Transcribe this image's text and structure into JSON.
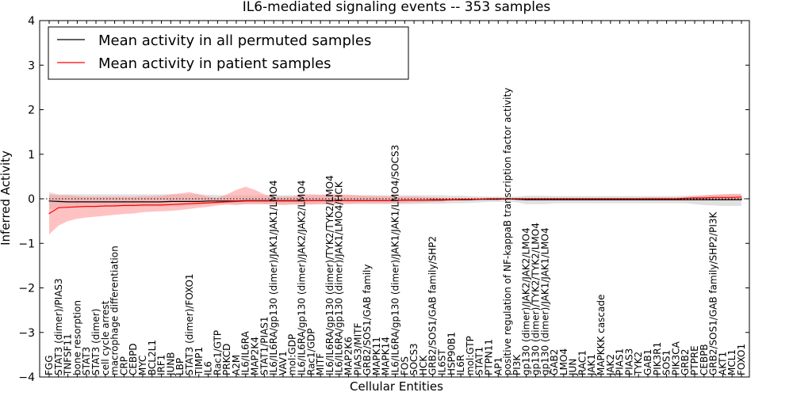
{
  "chart_data": {
    "type": "line",
    "title": "IL6-mediated signaling events -- 353 samples",
    "xlabel": "Cellular Entities",
    "ylabel": "Inferred Activity",
    "ylim": [
      -4,
      4
    ],
    "yticks": [
      -4,
      -3,
      -2,
      -1,
      0,
      1,
      2,
      3,
      4
    ],
    "legend_position": "top-left",
    "categories": [
      "FGG",
      "STAT3 (dimer)/PIAS3",
      "TNFSF11",
      "bone resorption",
      "STAT3",
      "STAT3 (dimer)",
      "cell cycle arrest",
      "macrophage differentiation",
      "CRP",
      "CEBPD",
      "MYC",
      "BCL2L1",
      "IRF1",
      "JUNB",
      "LBP",
      "STAT3 (dimer)/FOXO1",
      "TIMP1",
      "IL6",
      "Rac1/GTP",
      "PRKCD",
      "A2M",
      "IL6/IL6RA",
      "MAP2K4",
      "STAT1/PIAS1",
      "IL6/IL6RA/gp130 (dimer)/JAK1/JAK1/LMO4",
      "VAV1",
      "mol:GDP",
      "IL6/IL6RA/gp130 (dimer)/JAK2/JAK2/LMO4",
      "Rac1/GDP",
      "MITF",
      "IL6/IL6RA/gp130 (dimer)/TYK2/TYK2/LMO4",
      "IL6/IL6RA/gp130 (dimer)/JAK1/LMO4/HCK",
      "MAP2K6",
      "PIAS3/MITF",
      "GRB2/SOS1/GAB family",
      "MAPK11",
      "MAPK14",
      "IL6/IL6RA/gp130 (dimer)/JAK1/JAK1/LMO4/SOCS3",
      "FOS",
      "SOCS3",
      "HCK",
      "GRB2/SOS1/GAB family/SHP2",
      "IL6ST",
      "HSP90B1",
      "IL6R",
      "mol:GTP",
      "STAT1",
      "PTPN11",
      "AP1",
      "positive regulation of NF-kappaB transcription factor activity",
      "PI3K",
      "gp130 (dimer)/JAK2/JAK2/LMO4",
      "gp130 (dimer)/TYK2/TYK2/LMO4",
      "gp130 (dimer)/JAK1/JAK1/LMO4",
      "GAB2",
      "LMO4",
      "JUN",
      "RAC1",
      "JAK1",
      "MAPKKK cascade",
      "JAK2",
      "PIAS1",
      "PIAS3",
      "TYK2",
      "GAB1",
      "PIK3R1",
      "SOS1",
      "PIK3CA",
      "GRB2",
      "PTPRE",
      "CEBPB",
      "GRB2/SOS1/GAB family/SHP2/PI3K",
      "AKT1",
      "MCL1",
      "FOXO1"
    ],
    "series": [
      {
        "name": "Mean activity in all permuted samples",
        "color": "#000000",
        "band_color": "#bbbbbb",
        "values": [
          -0.05,
          -0.06,
          -0.07,
          -0.07,
          -0.07,
          -0.07,
          -0.07,
          -0.07,
          -0.07,
          -0.07,
          -0.07,
          -0.07,
          -0.07,
          -0.06,
          -0.06,
          -0.06,
          -0.06,
          -0.05,
          -0.05,
          -0.05,
          -0.05,
          -0.04,
          -0.04,
          -0.04,
          -0.04,
          -0.04,
          -0.04,
          -0.04,
          -0.04,
          -0.04,
          -0.04,
          -0.04,
          -0.04,
          -0.04,
          -0.04,
          -0.04,
          -0.04,
          -0.04,
          -0.03,
          -0.03,
          -0.03,
          -0.03,
          -0.03,
          -0.02,
          -0.02,
          -0.02,
          -0.01,
          -0.01,
          -0.01,
          0.0,
          -0.01,
          -0.02,
          -0.02,
          -0.02,
          -0.02,
          -0.02,
          -0.02,
          -0.02,
          -0.02,
          -0.02,
          -0.02,
          -0.02,
          -0.02,
          -0.02,
          -0.02,
          -0.02,
          -0.02,
          -0.02,
          -0.02,
          -0.02,
          -0.02,
          -0.02,
          -0.02,
          -0.02,
          -0.02
        ],
        "lower": [
          -0.25,
          -0.2,
          -0.2,
          -0.18,
          -0.18,
          -0.18,
          -0.18,
          -0.18,
          -0.18,
          -0.18,
          -0.18,
          -0.17,
          -0.17,
          -0.17,
          -0.17,
          -0.16,
          -0.15,
          -0.12,
          -0.12,
          -0.12,
          -0.12,
          -0.12,
          -0.12,
          -0.12,
          -0.12,
          -0.12,
          -0.12,
          -0.12,
          -0.12,
          -0.12,
          -0.12,
          -0.12,
          -0.12,
          -0.12,
          -0.12,
          -0.12,
          -0.12,
          -0.12,
          -0.12,
          -0.12,
          -0.11,
          -0.11,
          -0.11,
          -0.1,
          -0.1,
          -0.09,
          -0.08,
          -0.07,
          -0.07,
          -0.06,
          -0.08,
          -0.12,
          -0.12,
          -0.12,
          -0.1,
          -0.1,
          -0.1,
          -0.1,
          -0.1,
          -0.1,
          -0.1,
          -0.1,
          -0.1,
          -0.1,
          -0.1,
          -0.1,
          -0.1,
          -0.1,
          -0.1,
          -0.12,
          -0.14,
          -0.15,
          -0.16,
          -0.16,
          -0.16
        ],
        "upper": [
          0.15,
          0.1,
          0.1,
          0.1,
          0.1,
          0.1,
          0.1,
          0.1,
          0.1,
          0.1,
          0.1,
          0.1,
          0.1,
          0.1,
          0.1,
          0.1,
          0.1,
          0.09,
          0.08,
          0.08,
          0.08,
          0.08,
          0.08,
          0.08,
          0.08,
          0.08,
          0.08,
          0.08,
          0.08,
          0.08,
          0.08,
          0.08,
          0.08,
          0.08,
          0.08,
          0.08,
          0.08,
          0.08,
          0.08,
          0.08,
          0.08,
          0.08,
          0.08,
          0.07,
          0.07,
          0.06,
          0.05,
          0.05,
          0.05,
          0.04,
          0.05,
          0.07,
          0.07,
          0.07,
          0.06,
          0.06,
          0.06,
          0.06,
          0.06,
          0.06,
          0.06,
          0.06,
          0.06,
          0.06,
          0.06,
          0.06,
          0.06,
          0.06,
          0.07,
          0.07,
          0.08,
          0.09,
          0.1,
          0.1,
          0.1
        ]
      },
      {
        "name": "Mean activity in patient samples",
        "color": "#ff0000",
        "band_color": "#ff9999",
        "values": [
          -0.33,
          -0.2,
          -0.19,
          -0.18,
          -0.17,
          -0.17,
          -0.16,
          -0.16,
          -0.15,
          -0.15,
          -0.14,
          -0.14,
          -0.14,
          -0.13,
          -0.12,
          -0.11,
          -0.1,
          -0.09,
          -0.08,
          -0.07,
          -0.06,
          -0.05,
          -0.05,
          -0.05,
          -0.05,
          -0.05,
          -0.05,
          -0.05,
          -0.04,
          -0.04,
          -0.04,
          -0.04,
          -0.04,
          -0.04,
          -0.04,
          -0.04,
          -0.04,
          -0.04,
          -0.03,
          -0.03,
          -0.03,
          -0.02,
          -0.02,
          -0.02,
          -0.01,
          -0.01,
          -0.01,
          0.0,
          0.0,
          0.0,
          0.0,
          0.0,
          0.0,
          0.0,
          0.0,
          0.0,
          0.0,
          0.0,
          0.0,
          0.0,
          0.0,
          0.0,
          0.0,
          0.0,
          0.0,
          0.0,
          0.0,
          0.0,
          0.01,
          0.02,
          0.02,
          0.03,
          0.03,
          0.03,
          0.04
        ],
        "lower": [
          -0.8,
          -0.6,
          -0.5,
          -0.45,
          -0.42,
          -0.4,
          -0.38,
          -0.36,
          -0.34,
          -0.33,
          -0.3,
          -0.29,
          -0.28,
          -0.27,
          -0.25,
          -0.23,
          -0.2,
          -0.18,
          -0.15,
          -0.13,
          -0.14,
          -0.12,
          -0.12,
          -0.12,
          -0.13,
          -0.14,
          -0.13,
          -0.13,
          -0.13,
          -0.12,
          -0.13,
          -0.12,
          -0.11,
          -0.1,
          -0.1,
          -0.1,
          -0.1,
          -0.1,
          -0.09,
          -0.08,
          -0.08,
          -0.07,
          -0.06,
          -0.05,
          -0.04,
          -0.03,
          -0.02,
          -0.02,
          -0.02,
          -0.02,
          -0.02,
          -0.02,
          -0.02,
          -0.02,
          -0.02,
          -0.02,
          -0.02,
          -0.02,
          -0.02,
          -0.02,
          -0.02,
          -0.02,
          -0.02,
          -0.02,
          -0.02,
          -0.02,
          -0.02,
          -0.02,
          -0.02,
          -0.02,
          -0.03,
          -0.03,
          -0.03,
          -0.02,
          -0.02
        ],
        "upper": [
          0.1,
          0.08,
          0.08,
          0.06,
          0.05,
          0.05,
          0.05,
          0.05,
          0.05,
          0.05,
          0.06,
          0.06,
          0.07,
          0.1,
          0.12,
          0.15,
          0.1,
          0.05,
          0.02,
          0.1,
          0.2,
          0.27,
          0.2,
          0.1,
          0.05,
          0.05,
          0.05,
          0.1,
          0.1,
          0.09,
          0.1,
          0.1,
          0.09,
          0.08,
          0.07,
          0.06,
          0.06,
          0.05,
          0.05,
          0.05,
          0.04,
          0.03,
          0.02,
          0.02,
          0.02,
          0.02,
          0.02,
          0.02,
          0.02,
          0.02,
          0.02,
          0.02,
          0.02,
          0.02,
          0.02,
          0.02,
          0.02,
          0.02,
          0.02,
          0.02,
          0.02,
          0.02,
          0.02,
          0.02,
          0.03,
          0.03,
          0.03,
          0.03,
          0.04,
          0.06,
          0.08,
          0.09,
          0.1,
          0.11,
          0.11
        ]
      }
    ],
    "baseline_value": 0
  }
}
